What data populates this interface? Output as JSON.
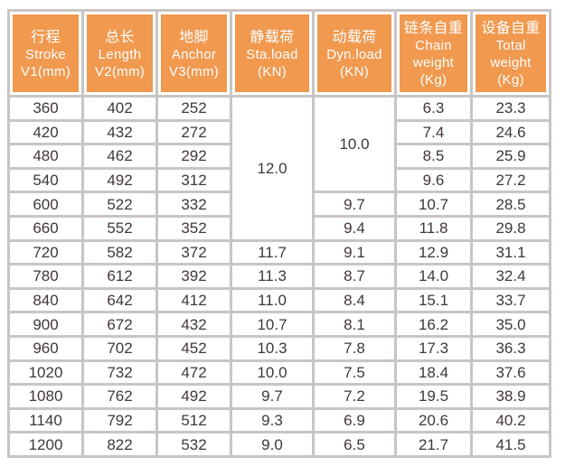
{
  "colors": {
    "header_bg": "#f0994f",
    "header_text": "#ffffff",
    "grid": "#c9c5c4",
    "body_text": "#403836",
    "cell_bg": "#ffffff",
    "page_bg": "#ffffff"
  },
  "chart_data": {
    "type": "table",
    "title": "",
    "columns": [
      {
        "name": "stroke",
        "lines": [
          "行程",
          "Stroke",
          "V1(mm)"
        ]
      },
      {
        "name": "length",
        "lines": [
          "总长",
          "Length",
          "V2(mm)"
        ]
      },
      {
        "name": "anchor",
        "lines": [
          "地脚",
          "Anchor",
          "V3(mm)"
        ]
      },
      {
        "name": "static-load",
        "lines": [
          "静载荷",
          "Sta.load",
          "(KN)"
        ]
      },
      {
        "name": "dynamic-load",
        "lines": [
          "动载荷",
          "Dyn.load",
          "(KN)"
        ]
      },
      {
        "name": "chain-weight",
        "lines": [
          "链条自重",
          "Chain",
          "weight",
          "(Kg)"
        ]
      },
      {
        "name": "total-weight",
        "lines": [
          "设备自重",
          "Total",
          "weight",
          "(Kg)"
        ]
      }
    ],
    "merges": [
      {
        "column": "static-load",
        "value": "12.0",
        "start_row": 0,
        "rowspan": 6
      },
      {
        "column": "dynamic-load",
        "value": "10.0",
        "start_row": 0,
        "rowspan": 4
      }
    ],
    "rows": [
      {
        "cells": [
          {
            "v": "360"
          },
          {
            "v": "402"
          },
          {
            "v": "252"
          },
          {
            "v": "12.0",
            "rowspan": 6
          },
          {
            "v": "10.0",
            "rowspan": 4
          },
          {
            "v": "6.3"
          },
          {
            "v": "23.3"
          }
        ]
      },
      {
        "cells": [
          {
            "v": "420"
          },
          {
            "v": "432"
          },
          {
            "v": "272"
          },
          {
            "v": "7.4"
          },
          {
            "v": "24.6"
          }
        ]
      },
      {
        "cells": [
          {
            "v": "480"
          },
          {
            "v": "462"
          },
          {
            "v": "292"
          },
          {
            "v": "8.5"
          },
          {
            "v": "25.9"
          }
        ]
      },
      {
        "cells": [
          {
            "v": "540"
          },
          {
            "v": "492"
          },
          {
            "v": "312"
          },
          {
            "v": "9.6"
          },
          {
            "v": "27.2"
          }
        ]
      },
      {
        "cells": [
          {
            "v": "600"
          },
          {
            "v": "522"
          },
          {
            "v": "332"
          },
          {
            "v": "9.7"
          },
          {
            "v": "10.7"
          },
          {
            "v": "28.5"
          }
        ]
      },
      {
        "cells": [
          {
            "v": "660"
          },
          {
            "v": "552"
          },
          {
            "v": "352"
          },
          {
            "v": "9.4"
          },
          {
            "v": "11.8"
          },
          {
            "v": "29.8"
          }
        ]
      },
      {
        "cells": [
          {
            "v": "720"
          },
          {
            "v": "582"
          },
          {
            "v": "372"
          },
          {
            "v": "11.7"
          },
          {
            "v": "9.1"
          },
          {
            "v": "12.9"
          },
          {
            "v": "31.1"
          }
        ]
      },
      {
        "cells": [
          {
            "v": "780"
          },
          {
            "v": "612"
          },
          {
            "v": "392"
          },
          {
            "v": "11.3"
          },
          {
            "v": "8.7"
          },
          {
            "v": "14.0"
          },
          {
            "v": "32.4"
          }
        ]
      },
      {
        "cells": [
          {
            "v": "840"
          },
          {
            "v": "642"
          },
          {
            "v": "412"
          },
          {
            "v": "11.0"
          },
          {
            "v": "8.4"
          },
          {
            "v": "15.1"
          },
          {
            "v": "33.7"
          }
        ]
      },
      {
        "cells": [
          {
            "v": "900"
          },
          {
            "v": "672"
          },
          {
            "v": "432"
          },
          {
            "v": "10.7"
          },
          {
            "v": "8.1"
          },
          {
            "v": "16.2"
          },
          {
            "v": "35.0"
          }
        ]
      },
      {
        "cells": [
          {
            "v": "960"
          },
          {
            "v": "702"
          },
          {
            "v": "452"
          },
          {
            "v": "10.3"
          },
          {
            "v": "7.8"
          },
          {
            "v": "17.3"
          },
          {
            "v": "36.3"
          }
        ]
      },
      {
        "cells": [
          {
            "v": "1020"
          },
          {
            "v": "732"
          },
          {
            "v": "472"
          },
          {
            "v": "10.0"
          },
          {
            "v": "7.5"
          },
          {
            "v": "18.4"
          },
          {
            "v": "37.6"
          }
        ]
      },
      {
        "cells": [
          {
            "v": "1080"
          },
          {
            "v": "762"
          },
          {
            "v": "492"
          },
          {
            "v": "9.7"
          },
          {
            "v": "7.2"
          },
          {
            "v": "19.5"
          },
          {
            "v": "38.9"
          }
        ]
      },
      {
        "cells": [
          {
            "v": "1140"
          },
          {
            "v": "792"
          },
          {
            "v": "512"
          },
          {
            "v": "9.3"
          },
          {
            "v": "6.9"
          },
          {
            "v": "20.6"
          },
          {
            "v": "40.2"
          }
        ]
      },
      {
        "cells": [
          {
            "v": "1200"
          },
          {
            "v": "822"
          },
          {
            "v": "532"
          },
          {
            "v": "9.0"
          },
          {
            "v": "6.5"
          },
          {
            "v": "21.7"
          },
          {
            "v": "41.5"
          }
        ]
      }
    ]
  }
}
